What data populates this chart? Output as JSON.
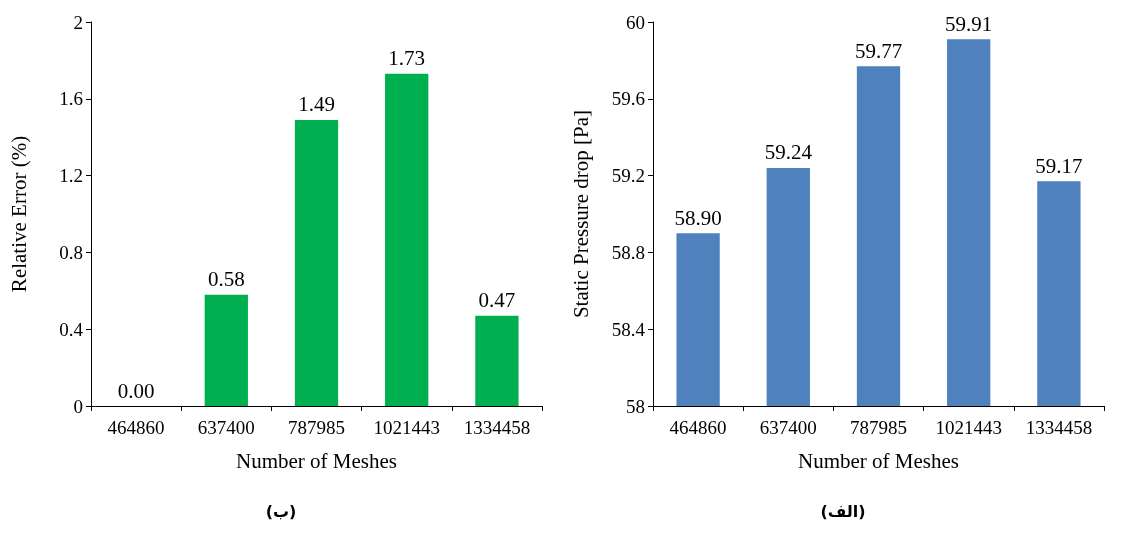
{
  "chart_data": [
    {
      "type": "bar",
      "xlabel": "Number of Meshes",
      "ylabel": "Relative Error (%)",
      "categories": [
        "464860",
        "637400",
        "787985",
        "1021443",
        "1334458"
      ],
      "values": [
        0,
        0.58,
        1.49,
        1.73,
        0.47
      ],
      "value_labels": [
        "0.00",
        "0.58",
        "1.49",
        "1.73",
        "0.47"
      ],
      "color": "#00b050",
      "ylim": [
        0,
        2
      ],
      "yticks": [
        0,
        0.4,
        0.8,
        1.2,
        1.6,
        2
      ],
      "grid": false,
      "annotations": [
        "(ب)"
      ]
    },
    {
      "type": "bar",
      "xlabel": "Number of Meshes",
      "ylabel": "Static Pressure drop [Pa]",
      "categories": [
        "464860",
        "637400",
        "787985",
        "1021443",
        "1334458"
      ],
      "values": [
        58.9,
        59.24,
        59.77,
        59.91,
        59.17
      ],
      "value_labels": [
        "58.90",
        "59.24",
        "59.77",
        "59.91",
        "59.17"
      ],
      "color": "#4f81bd",
      "ylim": [
        58,
        60
      ],
      "yticks": [
        58,
        58.4,
        58.8,
        59.2,
        59.6,
        60
      ],
      "grid": false,
      "annotations": [
        "(الف)"
      ]
    }
  ]
}
